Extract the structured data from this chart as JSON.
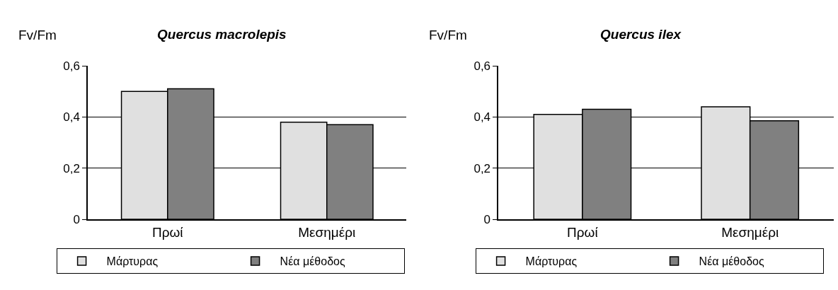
{
  "chart_data": [
    {
      "type": "bar",
      "title": "Quercus macrolepis",
      "ylabel": "Fv/Fm",
      "categories": [
        "Πρωί",
        "Μεσημέρι"
      ],
      "series": [
        {
          "name": "Μάρτυρας",
          "color": "#e0e0e0",
          "values": [
            0.5,
            0.38
          ]
        },
        {
          "name": "Νέα μέθοδος",
          "color": "#808080",
          "values": [
            0.51,
            0.37
          ]
        }
      ],
      "ylim": [
        0,
        0.6
      ],
      "yticks": [
        0,
        {
          "value": 0.2,
          "label": "0,2"
        },
        {
          "value": 0.4,
          "label": "0,4"
        },
        {
          "value": 0.6,
          "label": "0,6"
        }
      ],
      "grid": "y",
      "legend": "bottom"
    },
    {
      "type": "bar",
      "title": "Quercus ilex",
      "ylabel": "Fv/Fm",
      "categories": [
        "Πρωί",
        "Μεσημέρι"
      ],
      "series": [
        {
          "name": "Μάρτυρας",
          "color": "#e0e0e0",
          "values": [
            0.41,
            0.44
          ]
        },
        {
          "name": "Νέα μέθοδος",
          "color": "#808080",
          "values": [
            0.43,
            0.385
          ]
        }
      ],
      "ylim": [
        0,
        0.6
      ],
      "yticks": [
        0,
        {
          "value": 0.2,
          "label": "0,2"
        },
        {
          "value": 0.4,
          "label": "0,4"
        },
        {
          "value": 0.6,
          "label": "0,6"
        }
      ],
      "grid": "y",
      "legend": "bottom"
    }
  ]
}
